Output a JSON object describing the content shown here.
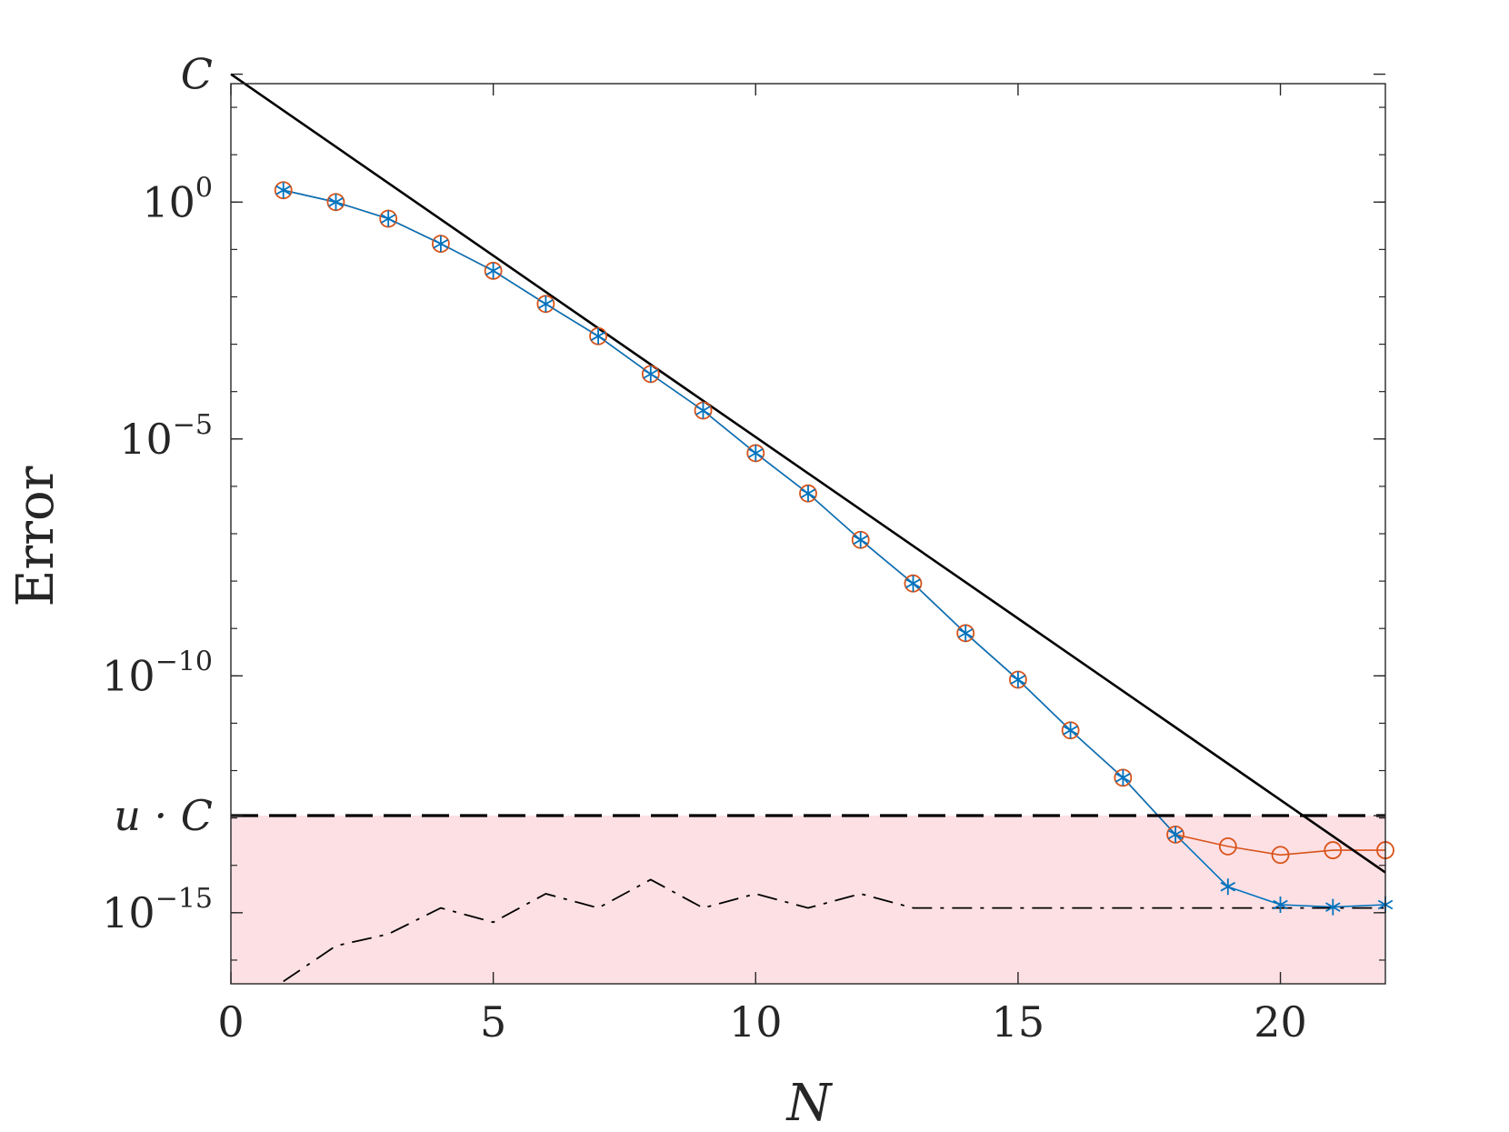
{
  "chart_data": {
    "type": "line",
    "xlabel": "N",
    "ylabel": "Error",
    "xlim": [
      0,
      22
    ],
    "ylim": [
      -16.5,
      2.5
    ],
    "y_scale": "log10",
    "grid": false,
    "x_ticks": [
      0,
      5,
      10,
      15,
      20
    ],
    "y_ticks": [
      {
        "base": "10",
        "exp": "0",
        "log10": 0
      },
      {
        "base": "10",
        "exp": "−5",
        "log10": -5
      },
      {
        "base": "10",
        "exp": "−10",
        "log10": -10
      },
      {
        "base": "10",
        "exp": "−15",
        "log10": -15
      }
    ],
    "y_text_ticks": [
      {
        "label": "C",
        "log10": 2.7
      },
      {
        "label": "u · C",
        "log10": -12.95
      }
    ],
    "shaded_region": {
      "from_log10": -16.5,
      "to_log10": -12.95,
      "color": "#fde0e4"
    },
    "series": [
      {
        "marker": "circle",
        "color": "#d95319",
        "style": "solid",
        "x": [
          1,
          2,
          3,
          4,
          5,
          6,
          7,
          8,
          9,
          10,
          11,
          12,
          13,
          14,
          15,
          16,
          17,
          18,
          19,
          20,
          21,
          22
        ],
        "log10_y": [
          0.25,
          0.0,
          -0.35,
          -0.88,
          -1.45,
          -2.15,
          -2.83,
          -3.63,
          -4.4,
          -5.3,
          -6.15,
          -7.13,
          -8.05,
          -9.1,
          -10.08,
          -11.15,
          -12.15,
          -13.35,
          -13.6,
          -13.78,
          -13.68,
          -13.68
        ]
      },
      {
        "marker": "asterisk",
        "color": "#0072bd",
        "style": "solid",
        "x": [
          1,
          2,
          3,
          4,
          5,
          6,
          7,
          8,
          9,
          10,
          11,
          12,
          13,
          14,
          15,
          16,
          17,
          18,
          19,
          20,
          21,
          22
        ],
        "log10_y": [
          0.25,
          0.0,
          -0.35,
          -0.88,
          -1.45,
          -2.15,
          -2.83,
          -3.63,
          -4.4,
          -5.3,
          -6.15,
          -7.13,
          -8.05,
          -9.1,
          -10.08,
          -11.15,
          -12.15,
          -13.35,
          -14.45,
          -14.83,
          -14.88,
          -14.83
        ]
      },
      {
        "marker": "none",
        "color": "#000000",
        "style": "solid",
        "x": [
          0,
          22
        ],
        "log10_y": [
          2.7,
          -14.15
        ]
      },
      {
        "marker": "none",
        "color": "#000000",
        "style": "dashed",
        "x": [
          0,
          22
        ],
        "log10_y": [
          -12.95,
          -12.95
        ]
      },
      {
        "marker": "none",
        "color": "#000000",
        "style": "dashdot",
        "x": [
          1,
          2,
          3,
          4,
          5,
          6,
          7,
          8,
          9,
          10,
          11,
          12,
          13,
          14,
          15,
          16,
          17,
          18,
          19,
          20,
          21,
          22
        ],
        "log10_y": [
          -16.45,
          -15.7,
          -15.45,
          -14.9,
          -15.2,
          -14.6,
          -14.9,
          -14.3,
          -14.9,
          -14.6,
          -14.9,
          -14.6,
          -14.9,
          -14.9,
          -14.9,
          -14.9,
          -14.9,
          -14.9,
          -14.9,
          -14.9,
          -14.9,
          -14.9
        ]
      }
    ]
  }
}
